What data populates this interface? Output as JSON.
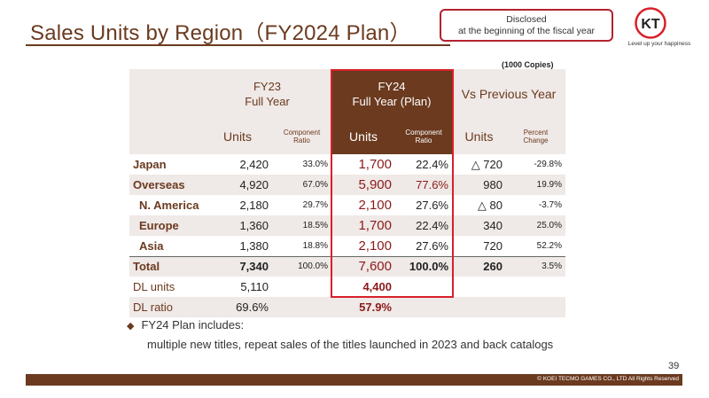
{
  "header": {
    "title": "Sales Units by Region（FY2024 Plan）",
    "disclosed_line1": "Disclosed",
    "disclosed_line2": "at the beginning of the fiscal year",
    "logo_letters": "KT",
    "logo_tagline": "Level up your happiness"
  },
  "table": {
    "unit_note": "(1000 Copies)",
    "groups": {
      "fy23_line1": "FY23",
      "fy23_line2": "Full Year",
      "fy24_line1": "FY24",
      "fy24_line2": "Full Year (Plan)",
      "vs": "Vs Previous Year"
    },
    "subheads": {
      "units": "Units",
      "comp_line1": "Component",
      "comp_line2": "Ratio",
      "pct_line1": "Percent",
      "pct_line2": "Change"
    },
    "rows": [
      {
        "label": "Japan",
        "fy23_units": "2,420",
        "fy23_ratio": "33.0%",
        "fy24_units": "1,700",
        "fy24_ratio": "22.4%",
        "vs_units": "△ 720",
        "vs_pct": "-29.8%"
      },
      {
        "label": "Overseas",
        "fy23_units": "4,920",
        "fy23_ratio": "67.0%",
        "fy24_units": "5,900",
        "fy24_ratio": "77.6%",
        "vs_units": "980",
        "vs_pct": "19.9%"
      },
      {
        "label": "N. America",
        "fy23_units": "2,180",
        "fy23_ratio": "29.7%",
        "fy24_units": "2,100",
        "fy24_ratio": "27.6%",
        "vs_units": "△ 80",
        "vs_pct": "-3.7%"
      },
      {
        "label": "Europe",
        "fy23_units": "1,360",
        "fy23_ratio": "18.5%",
        "fy24_units": "1,700",
        "fy24_ratio": "22.4%",
        "vs_units": "340",
        "vs_pct": "25.0%"
      },
      {
        "label": "Asia",
        "fy23_units": "1,380",
        "fy23_ratio": "18.8%",
        "fy24_units": "2,100",
        "fy24_ratio": "27.6%",
        "vs_units": "720",
        "vs_pct": "52.2%"
      },
      {
        "label": "Total",
        "fy23_units": "7,340",
        "fy23_ratio": "100.0%",
        "fy24_units": "7,600",
        "fy24_ratio": "100.0%",
        "vs_units": "260",
        "vs_pct": "3.5%"
      },
      {
        "label": "DL units",
        "fy23_units": "5,110",
        "fy24_units": "4,400"
      },
      {
        "label": "DL ratio",
        "fy23_units": "69.6%",
        "fy24_units": "57.9%"
      }
    ]
  },
  "notes": {
    "bullet": "FY24 Plan includes:",
    "detail": "multiple new titles, repeat sales of the titles launched in 2023 and back catalogs"
  },
  "footer": {
    "page_number": "39",
    "copyright": "© KOEI TECMO GAMES CO., LTD All Rights Reserved"
  },
  "colors": {
    "brand_brown": "#6b3a1f",
    "highlight_red": "#d8202a",
    "value_red": "#8b1a1a",
    "row_shade": "#efe9e7"
  }
}
